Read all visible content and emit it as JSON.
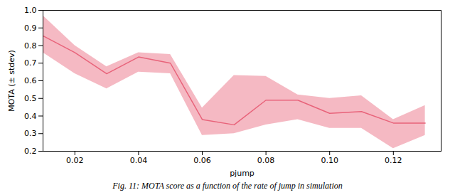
{
  "chart_data": {
    "type": "line",
    "x": [
      0.01,
      0.02,
      0.03,
      0.04,
      0.05,
      0.06,
      0.07,
      0.08,
      0.09,
      0.1,
      0.11,
      0.12,
      0.13
    ],
    "values": [
      0.855,
      0.76,
      0.64,
      0.735,
      0.7,
      0.38,
      0.35,
      0.49,
      0.49,
      0.415,
      0.425,
      0.36,
      0.36
    ],
    "upper": [
      0.97,
      0.8,
      0.68,
      0.76,
      0.75,
      0.445,
      0.63,
      0.625,
      0.52,
      0.5,
      0.515,
      0.38,
      0.46
    ],
    "lower": [
      0.76,
      0.64,
      0.555,
      0.65,
      0.64,
      0.29,
      0.3,
      0.35,
      0.38,
      0.33,
      0.33,
      0.215,
      0.29
    ],
    "color": "#e8637a",
    "xlabel": "pjump",
    "ylabel": "MOTA (± stdev)",
    "xlim": [
      0.01,
      0.135
    ],
    "ylim": [
      0.2,
      1.0
    ],
    "xticks": [
      0.02,
      0.04,
      0.06,
      0.08,
      {
        "value": 0.1,
        "label": "0.10"
      },
      0.12
    ],
    "yticks": [
      0.2,
      0.3,
      0.4,
      0.5,
      0.6,
      0.7,
      0.8,
      0.9,
      {
        "value": 1.0,
        "label": "1.0"
      }
    ],
    "grid": false,
    "caption": "Fig. 11: MOTA score as a function of the rate of jump in simulation"
  }
}
